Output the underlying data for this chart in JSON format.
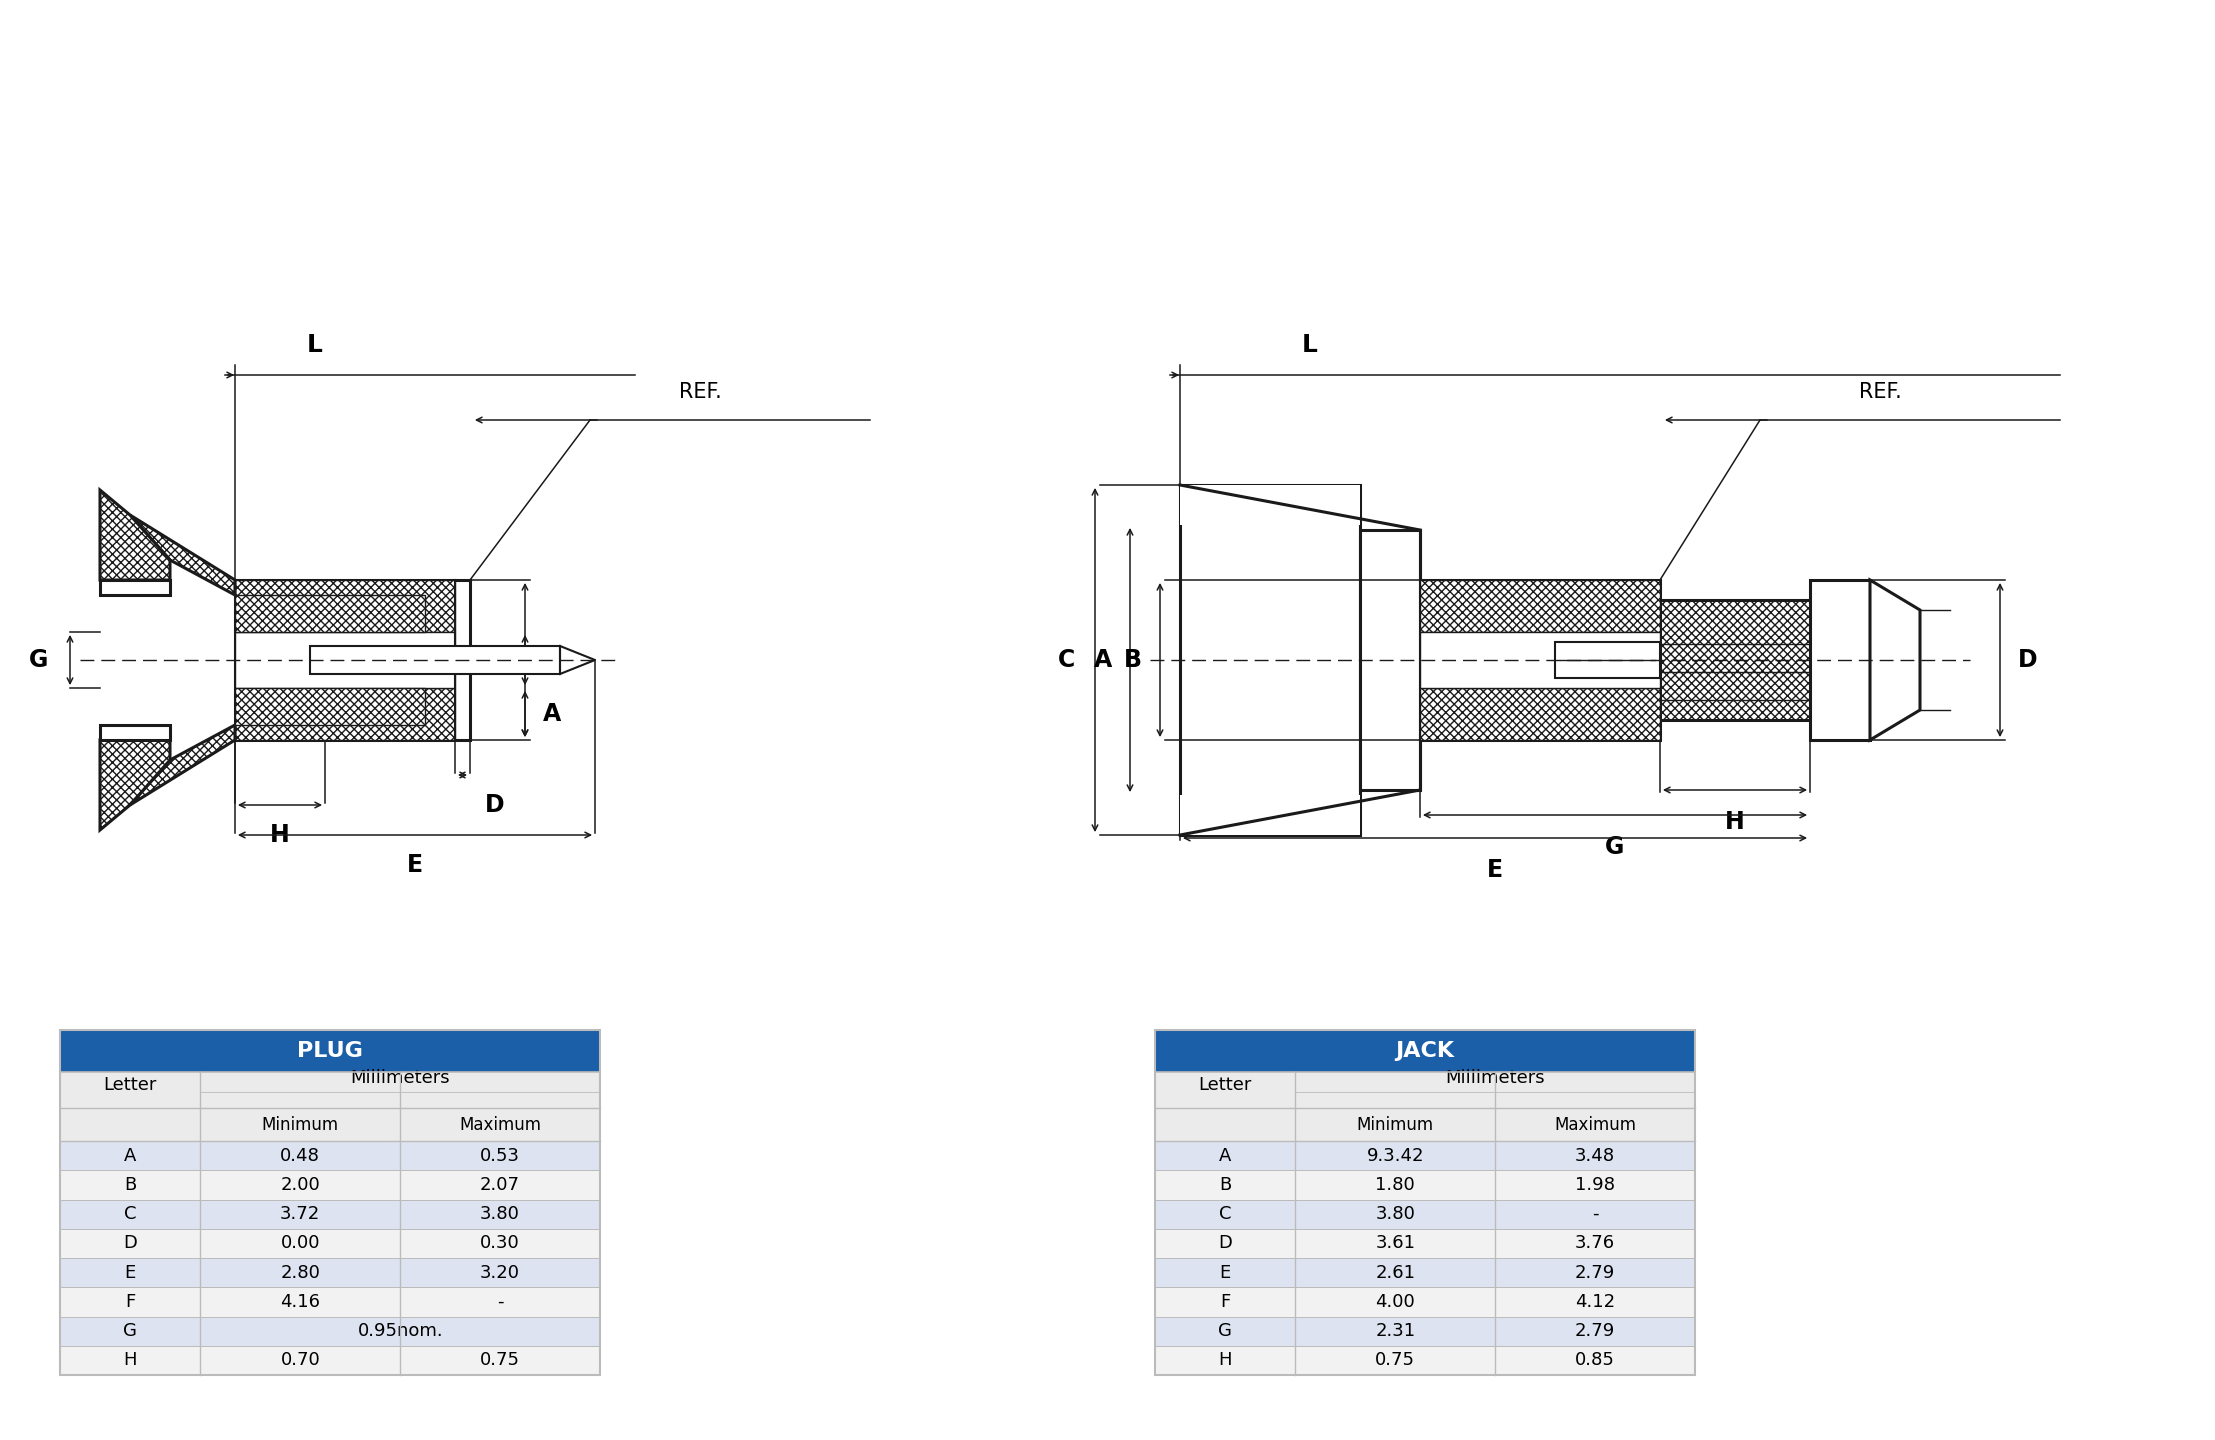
{
  "plug_table": {
    "title": "PLUG",
    "header1": "Letter",
    "header2": "Millimeters",
    "header3": "Minimum",
    "header4": "Maximum",
    "rows": [
      [
        "A",
        "0.48",
        "0.53"
      ],
      [
        "B",
        "2.00",
        "2.07"
      ],
      [
        "C",
        "3.72",
        "3.80"
      ],
      [
        "D",
        "0.00",
        "0.30"
      ],
      [
        "E",
        "2.80",
        "3.20"
      ],
      [
        "F",
        "4.16",
        "-"
      ],
      [
        "G",
        "0.95nom.",
        ""
      ],
      [
        "H",
        "0.70",
        "0.75"
      ]
    ]
  },
  "jack_table": {
    "title": "JACK",
    "header1": "Letter",
    "header2": "Millimeters",
    "header3": "Minimum",
    "header4": "Maximum",
    "rows": [
      [
        "A",
        "9.3.42",
        "3.48"
      ],
      [
        "B",
        "1.80",
        "1.98"
      ],
      [
        "C",
        "3.80",
        "-"
      ],
      [
        "D",
        "3.61",
        "3.76"
      ],
      [
        "E",
        "2.61",
        "2.79"
      ],
      [
        "F",
        "4.00",
        "4.12"
      ],
      [
        "G",
        "2.31",
        "2.79"
      ],
      [
        "H",
        "0.75",
        "0.85"
      ]
    ]
  },
  "bg_color": "#ffffff",
  "table_header_bg": "#1a5fa8",
  "table_header_fg": "#ffffff",
  "table_subheader_bg": "#ebebeb",
  "table_row_odd": "#dde3f0",
  "table_row_even": "#f2f2f2",
  "table_border": "#bbbbbb",
  "line_color": "#1a1a1a"
}
